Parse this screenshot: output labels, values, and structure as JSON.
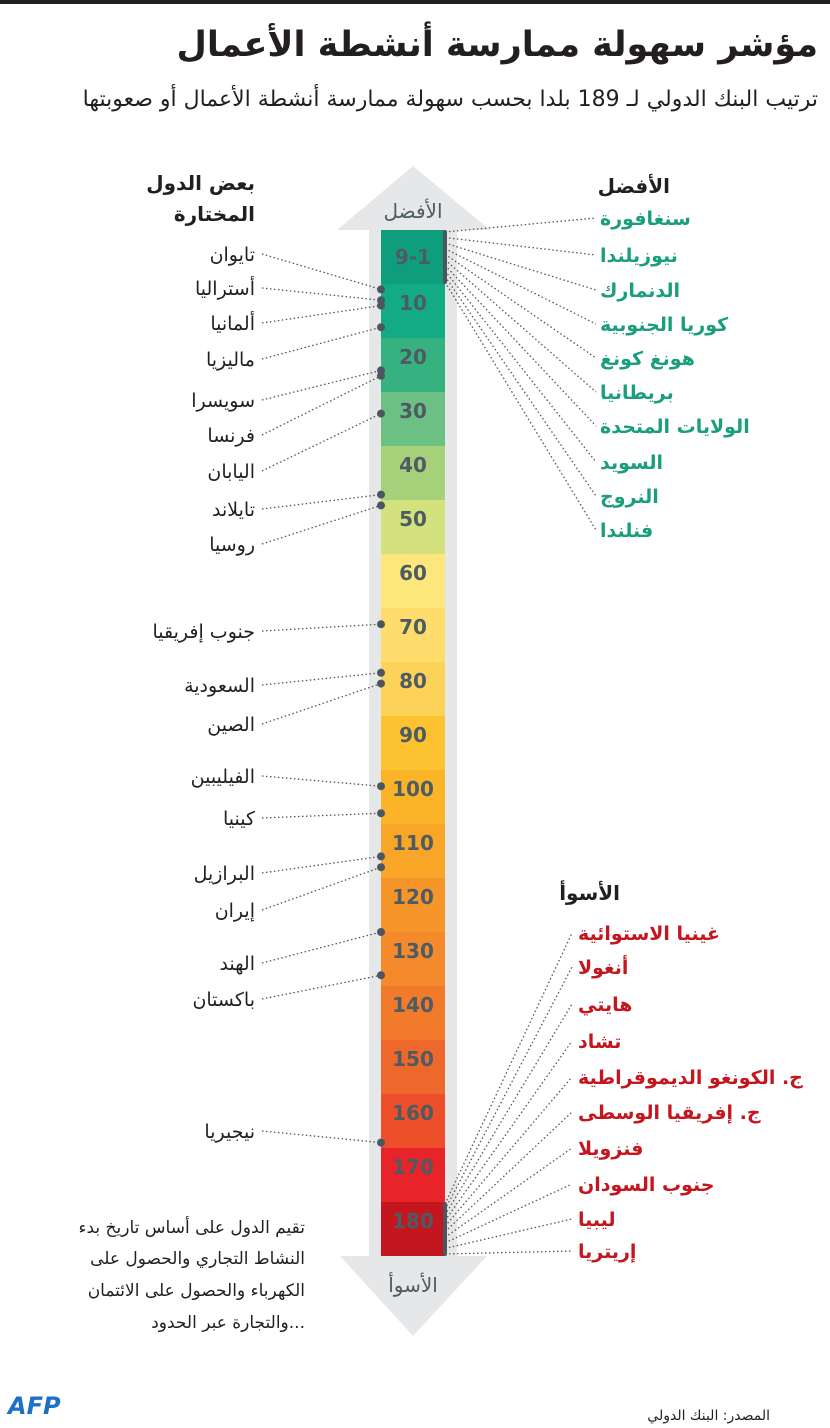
{
  "title": "مؤشر سهولة ممارسة أنشطة الأعمال",
  "subtitle": "ترتيب البنك الدولي لـ 189 بلدا بحسب سهولة ممارسة أنشطة الأعمال أو صعوبتها",
  "scale": {
    "top_label": "الأفضل",
    "bottom_label": "الأسوأ",
    "bands": [
      {
        "label": "9-1",
        "color": "#0f9e7d"
      },
      {
        "label": "10",
        "color": "#13ab85"
      },
      {
        "label": "20",
        "color": "#37b17f"
      },
      {
        "label": "30",
        "color": "#6dc084"
      },
      {
        "label": "40",
        "color": "#a7d07b"
      },
      {
        "label": "50",
        "color": "#d3e27d"
      },
      {
        "label": "60",
        "color": "#fde77c"
      },
      {
        "label": "70",
        "color": "#fedd6c"
      },
      {
        "label": "80",
        "color": "#fdd258"
      },
      {
        "label": "90",
        "color": "#fcc230"
      },
      {
        "label": "100",
        "color": "#fbb427"
      },
      {
        "label": "110",
        "color": "#f8a528"
      },
      {
        "label": "120",
        "color": "#f6962a"
      },
      {
        "label": "130",
        "color": "#f48a2b"
      },
      {
        "label": "140",
        "color": "#f27a2b"
      },
      {
        "label": "150",
        "color": "#ef682b"
      },
      {
        "label": "160",
        "color": "#ec4f2a"
      },
      {
        "label": "170",
        "color": "#e8242a"
      },
      {
        "label": "180",
        "color": "#c3161e"
      }
    ]
  },
  "best": {
    "heading": "الأفضل",
    "color": "#1a9e7e",
    "countries": [
      "سنغافورة",
      "نيوزيلندا",
      "الدنمارك",
      "كوريا الجنوبية",
      "هونغ كونغ",
      "بريطانيا",
      "الولايات المتحدة",
      "السويد",
      "النروج",
      "فنلندا"
    ]
  },
  "worst": {
    "heading": "الأسوأ",
    "color": "#c3161e",
    "countries": [
      "غينيا الاستوائية",
      "أنغولا",
      "هايتي",
      "تشاد",
      "ج. الكونغو الديموقراطية",
      "ج. إفريقيا الوسطى",
      "فنزويلا",
      "جنوب السودان",
      "ليبيا",
      "إريتريا"
    ]
  },
  "selected": {
    "heading": [
      "بعض الدول",
      "المختارة"
    ],
    "countries": [
      {
        "name": "تايوان",
        "rank": 11
      },
      {
        "name": "أستراليا",
        "rank": 13
      },
      {
        "name": "ألمانيا",
        "rank": 14
      },
      {
        "name": "ماليزيا",
        "rank": 18
      },
      {
        "name": "سويسرا",
        "rank": 26
      },
      {
        "name": "فرنسا",
        "rank": 27
      },
      {
        "name": "اليابان",
        "rank": 34
      },
      {
        "name": "تايلاند",
        "rank": 49
      },
      {
        "name": "روسيا",
        "rank": 51
      },
      {
        "name": "جنوب إفريقيا",
        "rank": 73
      },
      {
        "name": "السعودية",
        "rank": 82
      },
      {
        "name": "الصين",
        "rank": 84
      },
      {
        "name": "الفيليبين",
        "rank": 103
      },
      {
        "name": "كينيا",
        "rank": 108
      },
      {
        "name": "البرازيل",
        "rank": 116
      },
      {
        "name": "إيران",
        "rank": 118
      },
      {
        "name": "الهند",
        "rank": 130
      },
      {
        "name": "باكستان",
        "rank": 138
      },
      {
        "name": "نيجيريا",
        "rank": 169
      }
    ]
  },
  "footnote": [
    "تقيم الدول على أساس تاريخ بدء",
    "النشاط التجاري والحصول على",
    "الكهرباء والحصول على الائتمان",
    "والتجارة عبر الحدود..."
  ],
  "source": "المصدر: البنك الدولي",
  "logo": "AFP",
  "colors": {
    "text": "#231f20",
    "arrow": "#e6e7e8",
    "scale_text": "#4d5b63",
    "dot": "#4d5660",
    "logo": "#1e6fc8"
  }
}
